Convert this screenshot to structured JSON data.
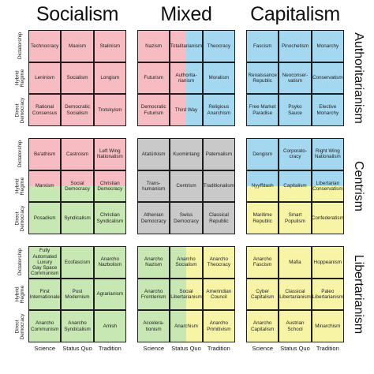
{
  "colors": {
    "socialism": "#f7bcc1",
    "capitalism": "#a4d8f1",
    "centrism": "#c9c9c9",
    "libertarian": "#f8f4a6",
    "green": "#c7e7b3",
    "grid": "#1e1e1e"
  },
  "economic_headers": [
    "Socialism",
    "Mixed",
    "Capitalism"
  ],
  "row_headers": [
    "Authoritarianism",
    "Centrism",
    "Libertarianism"
  ],
  "y_labels": [
    "Dictatorship",
    "Hybrid\nRegime",
    "Direct\nDemocracy"
  ],
  "x_labels": [
    "Science",
    "Status Quo",
    "Tradition"
  ],
  "blocks": [
    [
      {
        "cells": [
          {
            "label": "Technocracy",
            "color": "#f7bcc1"
          },
          {
            "label": "Maoism",
            "color": "#f7bcc1"
          },
          {
            "label": "Stalinism",
            "color": "#f7bcc1"
          },
          {
            "label": "Leninism",
            "color": "#f7bcc1"
          },
          {
            "label": "Socialism",
            "color": "#f7bcc1"
          },
          {
            "label": "Longism",
            "color": "#f7bcc1"
          },
          {
            "label": "Rational\nConsensus",
            "color": "#f7bcc1"
          },
          {
            "label": "Democratic\nSocialism",
            "color": "#f7bcc1"
          },
          {
            "label": "Trotskyism",
            "color": "#f7bcc1"
          }
        ]
      },
      {
        "cells": [
          {
            "label": "Nazism",
            "color": "#f7bcc1"
          },
          {
            "label": "Totalitarianism",
            "color": "#f7bcc1",
            "split": "#a4d8f1"
          },
          {
            "label": "Theocracy",
            "color": "#a4d8f1"
          },
          {
            "label": "Futurism",
            "color": "#f7bcc1"
          },
          {
            "label": "Authorita-\nrianism",
            "color": "#f7bcc1",
            "split": "#a4d8f1"
          },
          {
            "label": "Moralism",
            "color": "#a4d8f1"
          },
          {
            "label": "Democratic\nFuturism",
            "color": "#f7bcc1"
          },
          {
            "label": "Third Way",
            "color": "#f7bcc1",
            "split": "#a4d8f1"
          },
          {
            "label": "Religious\nAnarchism",
            "color": "#a4d8f1"
          }
        ]
      },
      {
        "cells": [
          {
            "label": "Fascism",
            "color": "#a4d8f1"
          },
          {
            "label": "Pinochetism",
            "color": "#a4d8f1"
          },
          {
            "label": "Monarchy",
            "color": "#a4d8f1"
          },
          {
            "label": "Renaissance\nRepublic",
            "color": "#a4d8f1"
          },
          {
            "label": "Neoconser-\nvatism",
            "color": "#a4d8f1"
          },
          {
            "label": "Conservatism",
            "color": "#a4d8f1"
          },
          {
            "label": "Free Market\nParadise",
            "color": "#a4d8f1"
          },
          {
            "label": "Psyko Sauce",
            "color": "#a4d8f1"
          },
          {
            "label": "Elective\nMonarchy",
            "color": "#a4d8f1"
          }
        ]
      }
    ],
    [
      {
        "cells": [
          {
            "label": "Ba'athism",
            "color": "#f7bcc1"
          },
          {
            "label": "Castroism",
            "color": "#f7bcc1"
          },
          {
            "label": "Left Wing\nNationalism",
            "color": "#f7bcc1"
          },
          {
            "label": "Marxism",
            "color": "#f7bcc1",
            "hsplit": "#c7e7b3"
          },
          {
            "label": "Social\nDemocracy",
            "color": "#f7bcc1",
            "hsplit": "#c7e7b3"
          },
          {
            "label": "Christian\nDemocracy",
            "color": "#f7bcc1",
            "hsplit": "#c7e7b3"
          },
          {
            "label": "Posadism",
            "color": "#c7e7b3"
          },
          {
            "label": "Syndicalism",
            "color": "#c7e7b3"
          },
          {
            "label": "Christian\nSyndicalism",
            "color": "#c7e7b3"
          }
        ]
      },
      {
        "cells": [
          {
            "label": "Atatürkism",
            "color": "#c9c9c9"
          },
          {
            "label": "Kuomintang",
            "color": "#c9c9c9"
          },
          {
            "label": "Paternalism",
            "color": "#c9c9c9"
          },
          {
            "label": "Trans-\nhumanism",
            "color": "#c9c9c9"
          },
          {
            "label": "Centrism",
            "color": "#c9c9c9"
          },
          {
            "label": "Traditionalism",
            "color": "#c9c9c9"
          },
          {
            "label": "Athenian\nDemocracy",
            "color": "#c9c9c9"
          },
          {
            "label": "Swiss\nDemocracy",
            "color": "#c9c9c9"
          },
          {
            "label": "Classical\nRepublic",
            "color": "#c9c9c9"
          }
        ]
      },
      {
        "cells": [
          {
            "label": "Dengism",
            "color": "#a4d8f1"
          },
          {
            "label": "Corporato-\ncracy",
            "color": "#a4d8f1"
          },
          {
            "label": "Right Wing\nNationalism",
            "color": "#a4d8f1"
          },
          {
            "label": "Nyyffdash",
            "color": "#a4d8f1",
            "hsplit": "#f8f4a6"
          },
          {
            "label": "Capitalism",
            "color": "#a4d8f1",
            "hsplit": "#f8f4a6"
          },
          {
            "label": "Libertarian\nConservatism",
            "color": "#a4d8f1",
            "hsplit": "#f8f4a6"
          },
          {
            "label": "Maritime\nRepublic",
            "color": "#f8f4a6"
          },
          {
            "label": "Smart\nPopulism",
            "color": "#f8f4a6"
          },
          {
            "label": "Confederatism",
            "color": "#f8f4a6"
          }
        ]
      }
    ],
    [
      {
        "cells": [
          {
            "label": "Fully\nAutomated\nLuxury\nGay Space\nCommunism",
            "color": "#c7e7b3"
          },
          {
            "label": "Ecofascism",
            "color": "#c7e7b3"
          },
          {
            "label": "Anarcho\nNazbolism",
            "color": "#c7e7b3"
          },
          {
            "label": "First\nInternationale",
            "color": "#c7e7b3"
          },
          {
            "label": "Post\nModernism",
            "color": "#c7e7b3"
          },
          {
            "label": "Agrarianism",
            "color": "#c7e7b3"
          },
          {
            "label": "Anarcho\nCommunism",
            "color": "#c7e7b3"
          },
          {
            "label": "Anarcho\nSyndicalism",
            "color": "#c7e7b3"
          },
          {
            "label": "Amish",
            "color": "#c7e7b3"
          }
        ]
      },
      {
        "cells": [
          {
            "label": "Anarcho\nNazism",
            "color": "#c7e7b3"
          },
          {
            "label": "Anarcho\nSocialism",
            "color": "#c7e7b3",
            "split": "#f8f4a6"
          },
          {
            "label": "Anarcho\nTheocracy",
            "color": "#f8f4a6"
          },
          {
            "label": "Anarcho\nFrontierism",
            "color": "#c7e7b3"
          },
          {
            "label": "Social\nLibertarianism",
            "color": "#c7e7b3",
            "split": "#f8f4a6"
          },
          {
            "label": "Amerindian\nCouncil",
            "color": "#f8f4a6"
          },
          {
            "label": "Accelera-\ntionism",
            "color": "#c7e7b3"
          },
          {
            "label": "Anarchism",
            "color": "#c7e7b3",
            "split": "#f8f4a6"
          },
          {
            "label": "Anarcho\nPrimitivism",
            "color": "#f8f4a6"
          }
        ]
      },
      {
        "cells": [
          {
            "label": "Anarcho\nFascism",
            "color": "#f8f4a6"
          },
          {
            "label": "Mafia",
            "color": "#f8f4a6"
          },
          {
            "label": "Hoppeanism",
            "color": "#f8f4a6"
          },
          {
            "label": "Cyber\nCapitalism",
            "color": "#f8f4a6"
          },
          {
            "label": "Classical\nLibertarianism",
            "color": "#f8f4a6"
          },
          {
            "label": "Paleo\nLibertarianism",
            "color": "#f8f4a6"
          },
          {
            "label": "Anarcho\nCapitalism",
            "color": "#f8f4a6"
          },
          {
            "label": "Austrian\nSchool",
            "color": "#f8f4a6"
          },
          {
            "label": "Minarchism",
            "color": "#f8f4a6"
          }
        ]
      }
    ]
  ]
}
